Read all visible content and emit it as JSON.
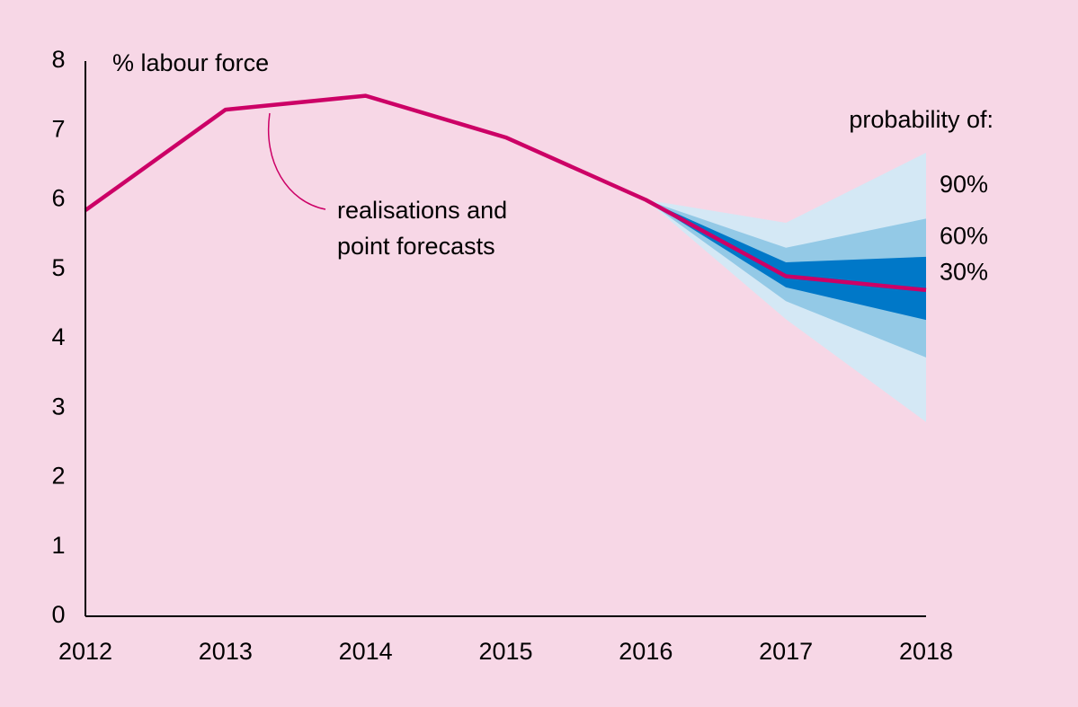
{
  "chart_data": {
    "type": "fan",
    "y_label": "% labour force",
    "categories": [
      "2012",
      "2013",
      "2014",
      "2015",
      "2016",
      "2017",
      "2018"
    ],
    "ylim": [
      0,
      8
    ],
    "yticks": [
      0,
      1,
      2,
      3,
      4,
      5,
      6,
      7,
      8
    ],
    "series": [
      {
        "name": "realisations and point forecasts",
        "color": "#cc0066",
        "values": [
          5.85,
          7.3,
          7.5,
          6.9,
          6.0,
          4.9,
          4.7
        ]
      }
    ],
    "annotation": [
      "realisations and",
      "point forecasts"
    ],
    "legend_title": "probability of:",
    "bands": [
      {
        "name": "90%",
        "color": "#d4e8f5",
        "upper": [
          null,
          null,
          null,
          null,
          6.0,
          5.67,
          6.68
        ],
        "lower": [
          null,
          null,
          null,
          null,
          6.0,
          4.28,
          2.8
        ]
      },
      {
        "name": "60%",
        "color": "#93c9e6",
        "upper": [
          null,
          null,
          null,
          null,
          6.0,
          5.31,
          5.73
        ],
        "lower": [
          null,
          null,
          null,
          null,
          6.0,
          4.54,
          3.73
        ]
      },
      {
        "name": "30%",
        "color": "#0078c8",
        "upper": [
          null,
          null,
          null,
          null,
          6.0,
          5.1,
          5.18
        ],
        "lower": [
          null,
          null,
          null,
          null,
          6.0,
          4.74,
          4.27
        ]
      }
    ]
  }
}
